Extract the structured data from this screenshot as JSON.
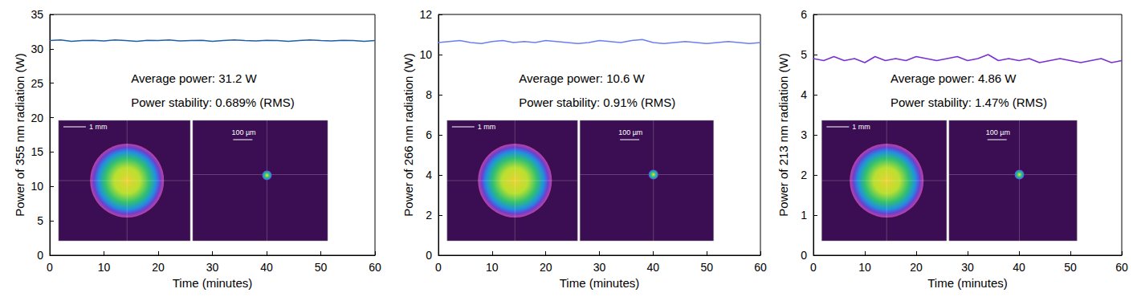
{
  "chart_data": [
    {
      "type": "line",
      "xlabel": "Time (minutes)",
      "ylabel": "Power of 355 nm radiation (W)",
      "annotations": [
        "Average power: 31.2 W",
        "Power stability: 0.689% (RMS)"
      ],
      "inset_labels": [
        "1 mm",
        "100 µm"
      ],
      "color": "#1f5fa8",
      "xlim": [
        0,
        60
      ],
      "xticks": [
        0,
        10,
        20,
        30,
        40,
        50,
        60
      ],
      "ylim": [
        0,
        35
      ],
      "yticks": [
        0,
        5,
        10,
        15,
        20,
        25,
        30,
        35
      ],
      "x": [
        0,
        2,
        4,
        6,
        8,
        10,
        12,
        14,
        16,
        18,
        20,
        22,
        24,
        26,
        28,
        30,
        32,
        34,
        36,
        38,
        40,
        42,
        44,
        46,
        48,
        50,
        52,
        54,
        56,
        58,
        60
      ],
      "values": [
        31.2,
        31.3,
        31.1,
        31.2,
        31.25,
        31.15,
        31.3,
        31.2,
        31.1,
        31.25,
        31.2,
        31.3,
        31.15,
        31.2,
        31.25,
        31.1,
        31.2,
        31.3,
        31.2,
        31.15,
        31.25,
        31.2,
        31.1,
        31.2,
        31.3,
        31.2,
        31.15,
        31.25,
        31.2,
        31.1,
        31.2
      ]
    },
    {
      "type": "line",
      "xlabel": "Time (minutes)",
      "ylabel": "Power of 266 nm radiation (W)",
      "annotations": [
        "Average power: 10.6 W",
        "Power stability: 0.91% (RMS)"
      ],
      "inset_labels": [
        "1 mm",
        "100 µm"
      ],
      "color": "#6a7ff0",
      "xlim": [
        0,
        60
      ],
      "xticks": [
        0,
        10,
        20,
        30,
        40,
        50,
        60
      ],
      "ylim": [
        0,
        12
      ],
      "yticks": [
        0,
        2,
        4,
        6,
        8,
        10,
        12
      ],
      "x": [
        0,
        2,
        4,
        6,
        8,
        10,
        12,
        14,
        16,
        18,
        20,
        22,
        24,
        26,
        28,
        30,
        32,
        34,
        36,
        38,
        40,
        42,
        44,
        46,
        48,
        50,
        52,
        54,
        56,
        58,
        60
      ],
      "values": [
        10.6,
        10.65,
        10.7,
        10.6,
        10.55,
        10.65,
        10.7,
        10.6,
        10.65,
        10.6,
        10.7,
        10.65,
        10.6,
        10.55,
        10.6,
        10.7,
        10.65,
        10.6,
        10.7,
        10.75,
        10.6,
        10.55,
        10.6,
        10.65,
        10.6,
        10.55,
        10.6,
        10.65,
        10.6,
        10.55,
        10.6
      ]
    },
    {
      "type": "line",
      "xlabel": "Time (minutes)",
      "ylabel": "Power of 213 nm radiation (W)",
      "annotations": [
        "Average power: 4.86 W",
        "Power stability: 1.47% (RMS)"
      ],
      "inset_labels": [
        "1 mm",
        "100 µm"
      ],
      "color": "#7a2fd0",
      "xlim": [
        0,
        60
      ],
      "xticks": [
        0,
        10,
        20,
        30,
        40,
        50,
        60
      ],
      "ylim": [
        0,
        6
      ],
      "yticks": [
        0,
        1,
        2,
        3,
        4,
        5,
        6
      ],
      "x": [
        0,
        2,
        4,
        6,
        8,
        10,
        12,
        14,
        16,
        18,
        20,
        22,
        24,
        26,
        28,
        30,
        32,
        34,
        36,
        38,
        40,
        42,
        44,
        46,
        48,
        50,
        52,
        54,
        56,
        58,
        60
      ],
      "values": [
        4.9,
        4.85,
        4.95,
        4.85,
        4.9,
        4.8,
        4.95,
        4.85,
        4.9,
        4.85,
        4.95,
        4.9,
        4.85,
        4.9,
        4.95,
        4.85,
        4.9,
        5.0,
        4.85,
        4.9,
        4.85,
        4.9,
        4.8,
        4.85,
        4.9,
        4.85,
        4.8,
        4.85,
        4.9,
        4.8,
        4.85
      ]
    }
  ]
}
